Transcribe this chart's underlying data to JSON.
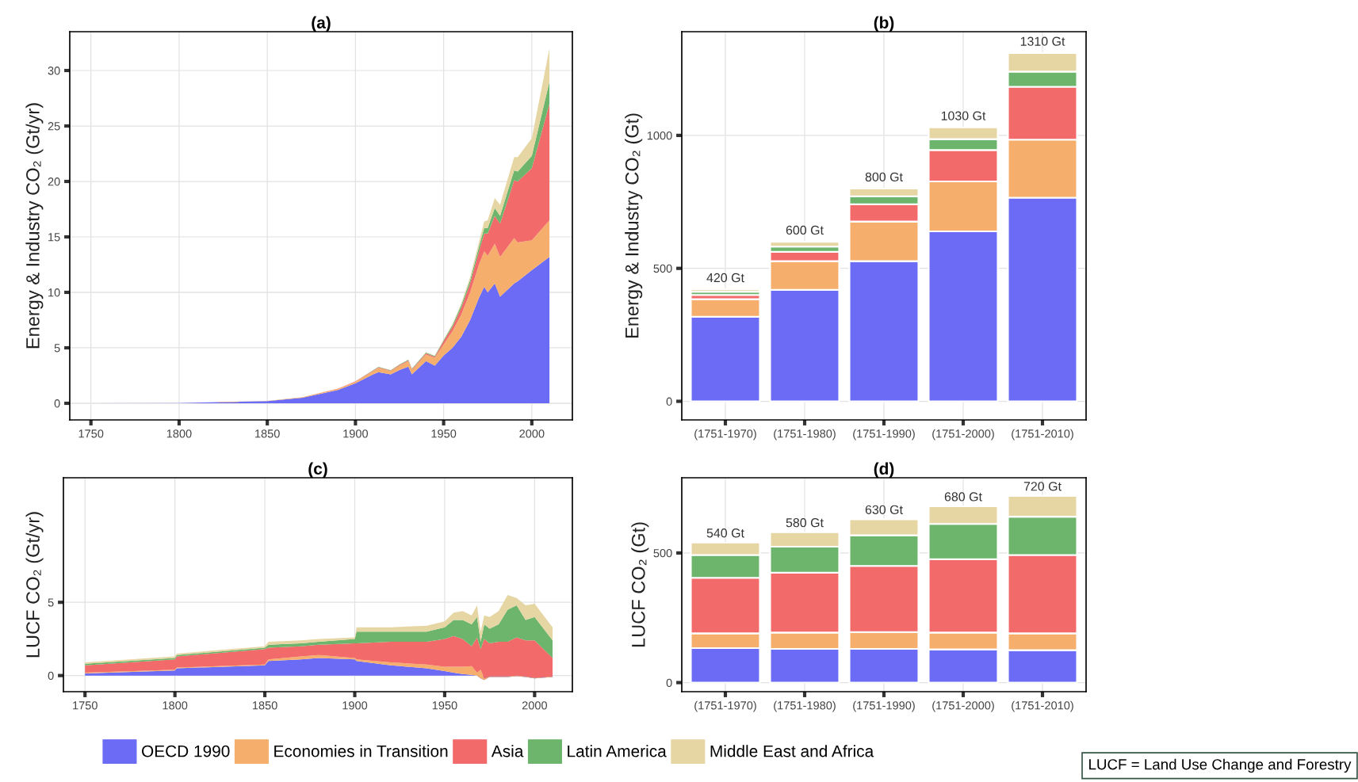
{
  "chart_data": [
    {
      "type": "area",
      "title": "(a)",
      "ylabel": "Energy & Industry CO₂ (Gt/yr)",
      "stacked": true,
      "grid": true,
      "legend": "bottom",
      "x": [
        1750,
        1800,
        1850,
        1870,
        1890,
        1900,
        1910,
        1913,
        1920,
        1925,
        1930,
        1932,
        1940,
        1945,
        1950,
        1955,
        1960,
        1965,
        1970,
        1973,
        1975,
        1979,
        1982,
        1990,
        1992,
        2000,
        2010
      ],
      "xlim": [
        1738,
        2023
      ],
      "xticks": [
        1750,
        1800,
        1850,
        1900,
        1950,
        2000
      ],
      "ylim": [
        -1.5,
        33.5
      ],
      "yticks": [
        0,
        5,
        10,
        15,
        20,
        25,
        30
      ],
      "series": [
        {
          "name": "OECD 1990",
          "color": "#6b6bf5",
          "values": [
            0,
            0.02,
            0.2,
            0.5,
            1.2,
            1.8,
            2.6,
            2.8,
            2.6,
            3.0,
            3.3,
            2.6,
            3.8,
            3.4,
            4.3,
            5.0,
            6.0,
            7.5,
            9.5,
            10.5,
            10.0,
            10.8,
            9.6,
            10.8,
            11.0,
            12.0,
            13.2
          ]
        },
        {
          "name": "Economies in Transition",
          "color": "#f5ae6b",
          "values": [
            0,
            0,
            0.02,
            0.05,
            0.1,
            0.15,
            0.3,
            0.4,
            0.3,
            0.4,
            0.5,
            0.4,
            0.6,
            0.7,
            1.0,
            1.5,
            2.0,
            2.5,
            3.0,
            3.2,
            3.3,
            3.6,
            3.6,
            4.1,
            3.5,
            2.7,
            3.3
          ]
        },
        {
          "name": "Asia",
          "color": "#f26a6a",
          "values": [
            0,
            0,
            0,
            0,
            0.02,
            0.03,
            0.05,
            0.05,
            0.05,
            0.06,
            0.08,
            0.08,
            0.1,
            0.1,
            0.3,
            0.4,
            0.6,
            0.8,
            1.2,
            1.6,
            2.0,
            2.5,
            3.0,
            5.2,
            5.5,
            6.5,
            10.5
          ]
        },
        {
          "name": "Latin America",
          "color": "#6db56d",
          "values": [
            0,
            0,
            0,
            0,
            0,
            0.01,
            0.03,
            0.03,
            0.04,
            0.04,
            0.05,
            0.05,
            0.07,
            0.07,
            0.1,
            0.15,
            0.25,
            0.3,
            0.4,
            0.5,
            0.5,
            0.7,
            0.7,
            0.9,
            0.9,
            1.1,
            2.0
          ]
        },
        {
          "name": "Middle East and Africa",
          "color": "#e6d6a4",
          "values": [
            0,
            0,
            0,
            0,
            0,
            0,
            0.01,
            0.01,
            0.01,
            0.01,
            0.02,
            0.02,
            0.03,
            0.03,
            0.05,
            0.1,
            0.15,
            0.25,
            0.4,
            0.6,
            0.7,
            0.9,
            1.0,
            1.2,
            1.3,
            1.6,
            3.0
          ]
        }
      ]
    },
    {
      "type": "bar",
      "title": "(b)",
      "ylabel": "Energy & Industry CO₂ (Gt)",
      "stacked": true,
      "categories": [
        "(1751-1970)",
        "(1751-1980)",
        "(1751-1990)",
        "(1751-2000)",
        "(1751-2010)"
      ],
      "ylim": [
        -70,
        1390
      ],
      "yticks": [
        0,
        500,
        1000
      ],
      "grid": true,
      "totals": [
        "420 Gt",
        "600 Gt",
        "800 Gt",
        "1030 Gt",
        "1310 Gt"
      ],
      "series": [
        {
          "color": "#6b6bf5",
          "values": [
            318,
            419,
            527,
            639,
            766
          ]
        },
        {
          "color": "#f5ae6b",
          "values": [
            66,
            108,
            149,
            188,
            218
          ]
        },
        {
          "color": "#f26a6a",
          "values": [
            16,
            35,
            65,
            118,
            199
          ]
        },
        {
          "color": "#6db56d",
          "values": [
            12,
            20,
            30,
            41,
            57
          ]
        },
        {
          "color": "#e6d6a4",
          "values": [
            9,
            18,
            29,
            44,
            70
          ]
        }
      ]
    },
    {
      "type": "area",
      "title": "(c)",
      "ylabel": "LUCF CO₂ (Gt/yr)",
      "stacked": true,
      "grid": true,
      "x": [
        1750,
        1800,
        1801,
        1850,
        1852,
        1870,
        1880,
        1900,
        1901,
        1920,
        1940,
        1950,
        1955,
        1960,
        1965,
        1968,
        1970,
        1972,
        1975,
        1980,
        1985,
        1990,
        1995,
        2000,
        2010
      ],
      "xlim": [
        1738,
        2021
      ],
      "xticks": [
        1750,
        1800,
        1850,
        1900,
        1950,
        2000
      ],
      "ylim": [
        -1.1,
        13.5
      ],
      "yticks": [
        0,
        5
      ],
      "annotations": [
        "LUCF = Land Use Change and Forestry"
      ],
      "series": [
        {
          "color": "#6b6bf5",
          "values": [
            0.15,
            0.35,
            0.5,
            0.7,
            1.0,
            1.1,
            1.2,
            1.1,
            1.0,
            0.7,
            0.5,
            0.3,
            0.2,
            0.1,
            0.05,
            0.0,
            -0.2,
            -0.3,
            -0.1,
            -0.1,
            -0.1,
            -0.05,
            -0.1,
            -0.2,
            -0.1
          ]
        },
        {
          "color": "#f5ae6b",
          "values": [
            0.05,
            0.05,
            0.05,
            0.05,
            0.1,
            0.2,
            0.2,
            0.1,
            0.1,
            0.2,
            0.25,
            0.3,
            0.4,
            0.5,
            0.6,
            0.2,
            0.6,
            0.1,
            0.05,
            0.05,
            0.05,
            0.05,
            0.05,
            0.05,
            0.05
          ]
        },
        {
          "color": "#f26a6a",
          "values": [
            0.5,
            0.7,
            0.75,
            1.05,
            0.8,
            0.7,
            0.7,
            1.0,
            1.1,
            1.4,
            1.55,
            1.9,
            2.1,
            1.9,
            1.35,
            2.4,
            1.4,
            2.7,
            2.25,
            2.35,
            2.35,
            2.6,
            2.45,
            2.55,
            1.25
          ]
        },
        {
          "color": "#6db56d",
          "values": [
            0.1,
            0.1,
            0.1,
            0.1,
            0.2,
            0.2,
            0.2,
            0.3,
            0.8,
            0.7,
            0.7,
            0.8,
            1.1,
            1.3,
            1.5,
            1.4,
            0.5,
            1.0,
            1.0,
            1.2,
            2.2,
            2.2,
            1.4,
            1.6,
            1.2
          ]
        },
        {
          "color": "#e6d6a4",
          "values": [
            0.1,
            0.1,
            0.1,
            0.1,
            0.2,
            0.2,
            0.2,
            0.1,
            0.3,
            0.3,
            0.4,
            0.4,
            0.5,
            0.6,
            0.6,
            0.8,
            0.7,
            0.6,
            0.8,
            0.9,
            1.0,
            0.5,
            1.0,
            0.9,
            0.9
          ]
        }
      ]
    },
    {
      "type": "bar",
      "title": "(d)",
      "ylabel": "LUCF CO₂ (Gt)",
      "stacked": true,
      "categories": [
        "(1751-1970)",
        "(1751-1980)",
        "(1751-1990)",
        "(1751-2000)",
        "(1751-2010)"
      ],
      "ylim": [
        -35,
        790
      ],
      "yticks": [
        0,
        500
      ],
      "grid": true,
      "totals": [
        "540 Gt",
        "580 Gt",
        "630 Gt",
        "680 Gt",
        "720 Gt"
      ],
      "series": [
        {
          "color": "#6b6bf5",
          "values": [
            133,
            130,
            130,
            128,
            125
          ]
        },
        {
          "color": "#f5ae6b",
          "values": [
            57,
            63,
            65,
            65,
            65
          ]
        },
        {
          "color": "#f26a6a",
          "values": [
            214,
            231,
            255,
            283,
            302
          ]
        },
        {
          "color": "#6db56d",
          "values": [
            88,
            100,
            118,
            136,
            148
          ]
        },
        {
          "color": "#e6d6a4",
          "values": [
            48,
            56,
            62,
            68,
            80
          ]
        }
      ]
    }
  ]
}
